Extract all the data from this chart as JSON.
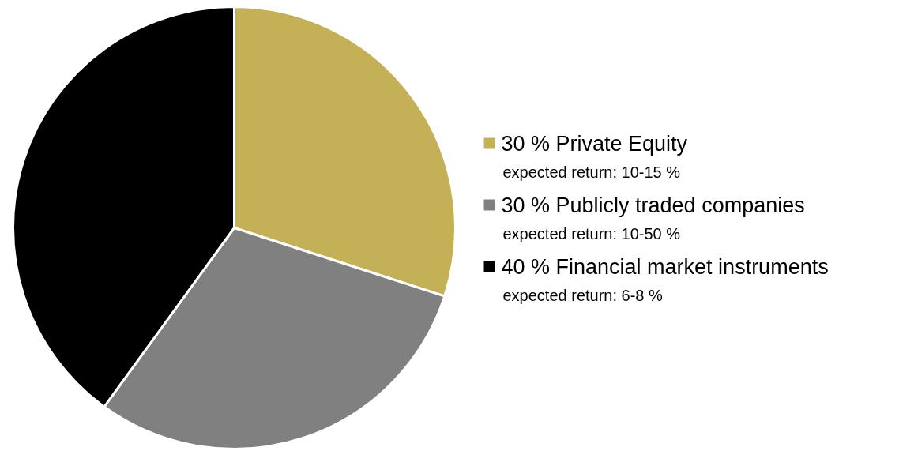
{
  "chart_data": {
    "type": "pie",
    "categories": [
      "30 % Private Equity",
      "30 % Publicly traded companies",
      "40 % Financial market instruments"
    ],
    "values": [
      30,
      30,
      40
    ],
    "colors": [
      "#c4b056",
      "#808080",
      "#000000"
    ],
    "legend": "right",
    "annotations": [
      "expected return: 10-15 %",
      "expected return: 10-50 %",
      "expected return: 6-8 %"
    ]
  }
}
